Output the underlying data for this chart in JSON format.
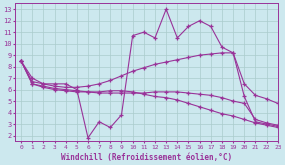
{
  "background_color": "#cce8ee",
  "grid_color": "#aacccc",
  "line_color": "#993399",
  "xlim": [
    -0.5,
    23
  ],
  "ylim": [
    1.5,
    13.5
  ],
  "xlabel": "Windchill (Refroidissement éolien,°C)",
  "yticks": [
    2,
    3,
    4,
    5,
    6,
    7,
    8,
    9,
    10,
    11,
    12,
    13
  ],
  "xticks": [
    0,
    1,
    2,
    3,
    4,
    5,
    6,
    7,
    8,
    9,
    10,
    11,
    12,
    13,
    14,
    15,
    16,
    17,
    18,
    19,
    20,
    21,
    22,
    23
  ],
  "series": [
    [
      8.5,
      7.0,
      6.5,
      6.5,
      6.5,
      6.0,
      1.8,
      3.2,
      2.7,
      3.8,
      10.7,
      11.0,
      10.5,
      13.0,
      10.5,
      11.5,
      12.0,
      11.5,
      9.7,
      9.2,
      5.4,
      3.2,
      3.0,
      2.8
    ],
    [
      8.5,
      6.7,
      6.5,
      6.3,
      6.2,
      6.2,
      6.3,
      6.5,
      6.8,
      7.2,
      7.6,
      7.9,
      8.2,
      8.4,
      8.6,
      8.8,
      9.0,
      9.1,
      9.2,
      9.2,
      6.5,
      5.5,
      5.2,
      4.8
    ],
    [
      8.5,
      6.5,
      6.3,
      6.1,
      6.0,
      5.9,
      5.8,
      5.7,
      5.7,
      5.7,
      5.7,
      5.7,
      5.8,
      5.8,
      5.8,
      5.7,
      5.6,
      5.5,
      5.3,
      5.0,
      4.8,
      3.4,
      3.1,
      2.9
    ],
    [
      8.5,
      6.5,
      6.2,
      6.0,
      5.9,
      5.8,
      5.8,
      5.8,
      5.9,
      5.9,
      5.8,
      5.6,
      5.4,
      5.3,
      5.1,
      4.8,
      4.5,
      4.2,
      3.9,
      3.7,
      3.4,
      3.1,
      2.9,
      2.7
    ]
  ]
}
